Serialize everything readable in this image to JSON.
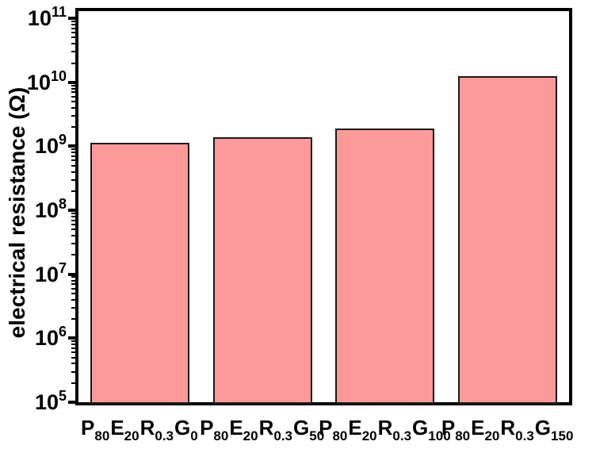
{
  "chart_data": {
    "type": "bar",
    "title": "",
    "xlabel": "",
    "ylabel": "electrical resistance (Ω)",
    "yscale": "log",
    "ylim": [
      100000.0,
      130000000000.0
    ],
    "y_ticks_exponents": [
      5,
      6,
      7,
      8,
      9,
      10,
      11
    ],
    "y_tick_base": "10",
    "categories": [
      "P80E20R0.3G0",
      "P80E20R0.3G50",
      "P80E20R0.3G100",
      "P80E20R0.3G150"
    ],
    "categories_rich": [
      [
        [
          "P",
          "80"
        ],
        [
          "E",
          "20"
        ],
        [
          "R",
          "0.3"
        ],
        [
          "G",
          "0"
        ]
      ],
      [
        [
          "P",
          "80"
        ],
        [
          "E",
          "20"
        ],
        [
          "R",
          "0.3"
        ],
        [
          "G",
          "50"
        ]
      ],
      [
        [
          "P",
          "80"
        ],
        [
          "E",
          "20"
        ],
        [
          "R",
          "0.3"
        ],
        [
          "G",
          "100"
        ]
      ],
      [
        [
          "P",
          "80"
        ],
        [
          "E",
          "20"
        ],
        [
          "R",
          "0.3"
        ],
        [
          "G",
          "150"
        ]
      ]
    ],
    "values": [
      1150000000.0,
      1400000000.0,
      1900000000.0,
      12500000000.0
    ],
    "bar_color": "#FC9A9A",
    "bar_border_color": "#1a1a1a",
    "axis_color": "#000000",
    "grid": false,
    "legend": null
  }
}
